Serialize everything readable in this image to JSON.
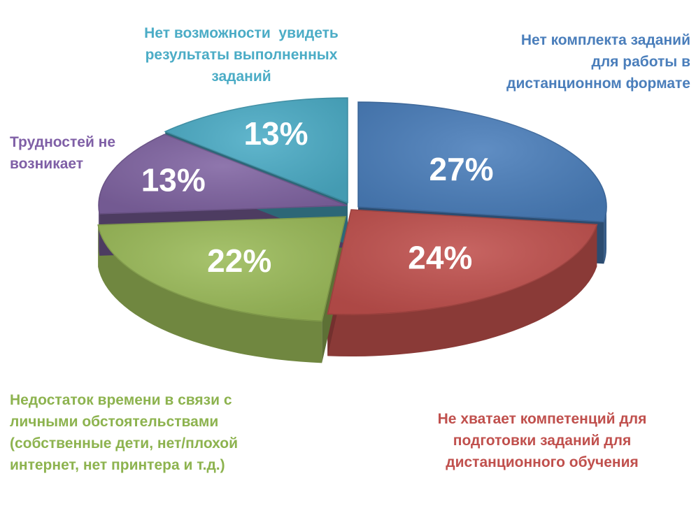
{
  "chart_data": {
    "type": "pie",
    "style": "3d-exploded",
    "slices": [
      {
        "label": "Нет комплекта заданий для работы в дистанционном формате",
        "value": 27,
        "value_label": "27%",
        "color": "#4a7ebb",
        "label_color": "#4a7ebb"
      },
      {
        "label": "Не хватает компетенций для подготовки заданий для дистанционного обучения",
        "value": 24,
        "value_label": "24%",
        "color": "#c0504d",
        "label_color": "#c0504d"
      },
      {
        "label": "Недостаток времени в связи с личными обстоятельствами (собственные дети, нет/плохой интернет, нет принтера и т.д.)",
        "value": 22,
        "value_label": "22%",
        "color": "#9bbb59",
        "label_color": "#9bbb59"
      },
      {
        "label": "Трудностей не возникает",
        "value": 13,
        "value_label": "13%",
        "color": "#8064a2",
        "label_color": "#8064a2"
      },
      {
        "label": "Нет возможности  увидеть результаты выполненных заданий",
        "value": 13,
        "value_label": "13%",
        "color": "#4bacc6",
        "label_color": "#4bacc6"
      }
    ]
  },
  "labels": {
    "blue": [
      "Нет комплекта заданий",
      "для работы в",
      "дистанционном формате"
    ],
    "red": [
      "Не хватает компетенций для",
      "подготовки заданий для",
      "дистанционного обучения"
    ],
    "green": [
      "Недостаток времени в связи с",
      "личными обстоятельствами",
      "(собственные дети, нет/плохой",
      "интернет, нет принтера и т.д.)"
    ],
    "purple": [
      "Трудностей не",
      "возникает"
    ],
    "cyan": [
      "Нет возможности  увидеть",
      "результаты выполненных",
      "заданий"
    ]
  }
}
